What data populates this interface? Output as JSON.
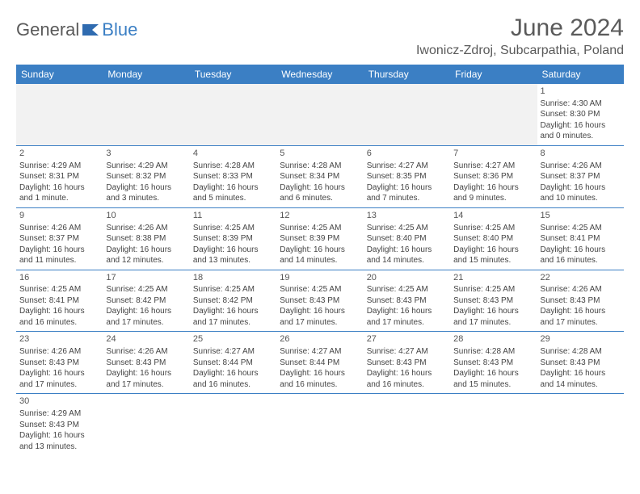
{
  "brand": {
    "text1": "General",
    "text2": "Blue"
  },
  "header": {
    "title": "June 2024",
    "location": "Iwonicz-Zdroj, Subcarpathia, Poland"
  },
  "colors": {
    "header_bg": "#3b7fc4",
    "header_text": "#ffffff",
    "border": "#3b7fc4",
    "blank_bg": "#f2f2f2",
    "text": "#444444",
    "title": "#5a5a5a"
  },
  "weekdays": [
    "Sunday",
    "Monday",
    "Tuesday",
    "Wednesday",
    "Thursday",
    "Friday",
    "Saturday"
  ],
  "days": {
    "1": {
      "sunrise": "4:30 AM",
      "sunset": "8:30 PM",
      "daylight": "16 hours and 0 minutes."
    },
    "2": {
      "sunrise": "4:29 AM",
      "sunset": "8:31 PM",
      "daylight": "16 hours and 1 minute."
    },
    "3": {
      "sunrise": "4:29 AM",
      "sunset": "8:32 PM",
      "daylight": "16 hours and 3 minutes."
    },
    "4": {
      "sunrise": "4:28 AM",
      "sunset": "8:33 PM",
      "daylight": "16 hours and 5 minutes."
    },
    "5": {
      "sunrise": "4:28 AM",
      "sunset": "8:34 PM",
      "daylight": "16 hours and 6 minutes."
    },
    "6": {
      "sunrise": "4:27 AM",
      "sunset": "8:35 PM",
      "daylight": "16 hours and 7 minutes."
    },
    "7": {
      "sunrise": "4:27 AM",
      "sunset": "8:36 PM",
      "daylight": "16 hours and 9 minutes."
    },
    "8": {
      "sunrise": "4:26 AM",
      "sunset": "8:37 PM",
      "daylight": "16 hours and 10 minutes."
    },
    "9": {
      "sunrise": "4:26 AM",
      "sunset": "8:37 PM",
      "daylight": "16 hours and 11 minutes."
    },
    "10": {
      "sunrise": "4:26 AM",
      "sunset": "8:38 PM",
      "daylight": "16 hours and 12 minutes."
    },
    "11": {
      "sunrise": "4:25 AM",
      "sunset": "8:39 PM",
      "daylight": "16 hours and 13 minutes."
    },
    "12": {
      "sunrise": "4:25 AM",
      "sunset": "8:39 PM",
      "daylight": "16 hours and 14 minutes."
    },
    "13": {
      "sunrise": "4:25 AM",
      "sunset": "8:40 PM",
      "daylight": "16 hours and 14 minutes."
    },
    "14": {
      "sunrise": "4:25 AM",
      "sunset": "8:40 PM",
      "daylight": "16 hours and 15 minutes."
    },
    "15": {
      "sunrise": "4:25 AM",
      "sunset": "8:41 PM",
      "daylight": "16 hours and 16 minutes."
    },
    "16": {
      "sunrise": "4:25 AM",
      "sunset": "8:41 PM",
      "daylight": "16 hours and 16 minutes."
    },
    "17": {
      "sunrise": "4:25 AM",
      "sunset": "8:42 PM",
      "daylight": "16 hours and 17 minutes."
    },
    "18": {
      "sunrise": "4:25 AM",
      "sunset": "8:42 PM",
      "daylight": "16 hours and 17 minutes."
    },
    "19": {
      "sunrise": "4:25 AM",
      "sunset": "8:43 PM",
      "daylight": "16 hours and 17 minutes."
    },
    "20": {
      "sunrise": "4:25 AM",
      "sunset": "8:43 PM",
      "daylight": "16 hours and 17 minutes."
    },
    "21": {
      "sunrise": "4:25 AM",
      "sunset": "8:43 PM",
      "daylight": "16 hours and 17 minutes."
    },
    "22": {
      "sunrise": "4:26 AM",
      "sunset": "8:43 PM",
      "daylight": "16 hours and 17 minutes."
    },
    "23": {
      "sunrise": "4:26 AM",
      "sunset": "8:43 PM",
      "daylight": "16 hours and 17 minutes."
    },
    "24": {
      "sunrise": "4:26 AM",
      "sunset": "8:43 PM",
      "daylight": "16 hours and 17 minutes."
    },
    "25": {
      "sunrise": "4:27 AM",
      "sunset": "8:44 PM",
      "daylight": "16 hours and 16 minutes."
    },
    "26": {
      "sunrise": "4:27 AM",
      "sunset": "8:44 PM",
      "daylight": "16 hours and 16 minutes."
    },
    "27": {
      "sunrise": "4:27 AM",
      "sunset": "8:43 PM",
      "daylight": "16 hours and 16 minutes."
    },
    "28": {
      "sunrise": "4:28 AM",
      "sunset": "8:43 PM",
      "daylight": "16 hours and 15 minutes."
    },
    "29": {
      "sunrise": "4:28 AM",
      "sunset": "8:43 PM",
      "daylight": "16 hours and 14 minutes."
    },
    "30": {
      "sunrise": "4:29 AM",
      "sunset": "8:43 PM",
      "daylight": "16 hours and 13 minutes."
    }
  },
  "labels": {
    "sunrise": "Sunrise: ",
    "sunset": "Sunset: ",
    "daylight": "Daylight: "
  },
  "layout": {
    "first_weekday_index": 6,
    "num_days": 30,
    "cols": 7
  }
}
